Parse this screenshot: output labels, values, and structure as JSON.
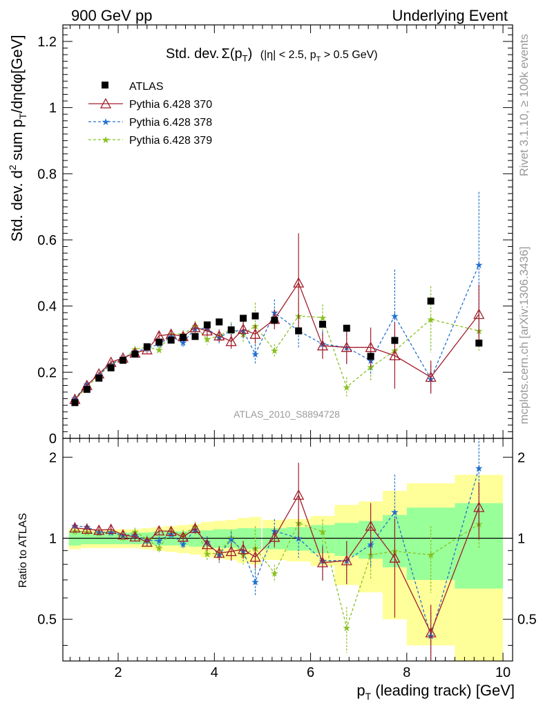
{
  "header": {
    "left": "900 GeV pp",
    "right": "Underlying Event"
  },
  "side_texts": {
    "rivet": "Rivet 3.1.10, ≥ 100k events",
    "mcplots": "mcplots.cern.ch [arXiv:1306.3436]"
  },
  "plot_title": {
    "prefix": "Std. dev.",
    "sigma": "Σ(p",
    "sub_t": "T",
    "close": ")",
    "cuts_a": "(|η| < 2.5, p",
    "cuts_sub": "T",
    "cuts_b": " > 0.5 GeV)"
  },
  "watermark": "ATLAS_2010_S8894728",
  "axis_labels": {
    "y_main_a": "Std. dev. d",
    "y_main_sup": "2",
    "y_main_b": " sum p",
    "y_main_sub": "T",
    "y_main_c": "/dηdφ[GeV]",
    "y_ratio": "Ratio to ATLAS",
    "x_a": "p",
    "x_sub": "T",
    "x_b": " (leading track) [GeV]"
  },
  "legend": {
    "atlas": "ATLAS",
    "s370": "Pythia 6.428 370",
    "s378": "Pythia 6.428 378",
    "s379": "Pythia 6.428 379"
  },
  "chart_data": {
    "type": "scatter",
    "xlim": [
      0.85,
      10.2
    ],
    "ylim_main": [
      0,
      1.25
    ],
    "ylim_ratio": [
      0.35,
      2.35
    ],
    "xticks": [
      2,
      4,
      6,
      8,
      10
    ],
    "yticks_main": [
      0,
      0.2,
      0.4,
      0.6,
      0.8,
      1,
      1.2
    ],
    "yticks_ratio": [
      0.5,
      1,
      2
    ],
    "ratio_log_scale": true,
    "x": [
      1.1,
      1.35,
      1.6,
      1.85,
      2.1,
      2.35,
      2.6,
      2.85,
      3.1,
      3.35,
      3.6,
      3.85,
      4.1,
      4.35,
      4.6,
      4.85,
      5.25,
      5.75,
      6.25,
      6.75,
      7.25,
      7.75,
      8.5,
      9.5
    ],
    "x_half_width": [
      0.125,
      0.125,
      0.125,
      0.125,
      0.125,
      0.125,
      0.125,
      0.125,
      0.125,
      0.125,
      0.125,
      0.125,
      0.125,
      0.125,
      0.125,
      0.125,
      0.25,
      0.25,
      0.25,
      0.25,
      0.25,
      0.25,
      0.5,
      0.5
    ],
    "atlas": [
      0.108,
      0.148,
      0.182,
      0.213,
      0.236,
      0.255,
      0.277,
      0.291,
      0.297,
      0.305,
      0.308,
      0.343,
      0.352,
      0.328,
      0.363,
      0.37,
      0.357,
      0.325,
      0.345,
      0.333,
      0.248,
      0.296,
      0.415,
      0.288
    ],
    "band_green": [
      0.06,
      0.05,
      0.05,
      0.05,
      0.05,
      0.05,
      0.05,
      0.06,
      0.06,
      0.06,
      0.07,
      0.07,
      0.08,
      0.08,
      0.09,
      0.09,
      0.09,
      0.1,
      0.12,
      0.14,
      0.16,
      0.22,
      0.3,
      0.35
    ],
    "band_yellow": [
      0.09,
      0.08,
      0.08,
      0.08,
      0.08,
      0.08,
      0.09,
      0.1,
      0.11,
      0.12,
      0.13,
      0.15,
      0.16,
      0.17,
      0.19,
      0.2,
      0.17,
      0.18,
      0.21,
      0.33,
      0.37,
      0.5,
      0.6,
      0.72
    ],
    "series": [
      {
        "name": "Pythia 6.428 370",
        "color": "#a01c2a",
        "marker": "open-triangle",
        "line": "solid",
        "values": [
          0.118,
          0.16,
          0.195,
          0.23,
          0.243,
          0.258,
          0.268,
          0.31,
          0.315,
          0.308,
          0.335,
          0.325,
          0.31,
          0.293,
          0.33,
          0.315,
          0.36,
          0.47,
          0.28,
          0.275,
          0.275,
          0.25,
          0.185,
          0.375
        ],
        "err": [
          0.004,
          0.005,
          0.006,
          0.007,
          0.008,
          0.009,
          0.01,
          0.011,
          0.012,
          0.013,
          0.015,
          0.017,
          0.019,
          0.022,
          0.025,
          0.028,
          0.03,
          0.15,
          0.04,
          0.05,
          0.06,
          0.1,
          0.05,
          0.09
        ]
      },
      {
        "name": "Pythia 6.428 378",
        "color": "#2070d0",
        "marker": "star",
        "line": "dashed",
        "values": [
          0.12,
          0.163,
          0.192,
          0.224,
          0.242,
          0.262,
          0.272,
          0.285,
          0.308,
          0.29,
          0.332,
          0.332,
          0.305,
          0.325,
          0.325,
          0.255,
          0.38,
          0.325,
          0.285,
          0.275,
          0.235,
          0.37,
          0.18,
          0.525
        ],
        "err": [
          0.004,
          0.005,
          0.006,
          0.007,
          0.008,
          0.009,
          0.01,
          0.011,
          0.012,
          0.013,
          0.015,
          0.017,
          0.02,
          0.022,
          0.025,
          0.03,
          0.04,
          0.05,
          0.04,
          0.05,
          0.04,
          0.14,
          0.04,
          0.22
        ]
      },
      {
        "name": "Pythia 6.428 379",
        "color": "#88c020",
        "marker": "star",
        "line": "dashed",
        "values": [
          0.115,
          0.156,
          0.19,
          0.225,
          0.238,
          0.27,
          0.275,
          0.268,
          0.315,
          0.315,
          0.34,
          0.3,
          0.31,
          0.33,
          0.315,
          0.34,
          0.265,
          0.37,
          0.365,
          0.155,
          0.215,
          0.265,
          0.36,
          0.325
        ],
        "err": [
          0.004,
          0.005,
          0.006,
          0.007,
          0.008,
          0.009,
          0.01,
          0.011,
          0.012,
          0.013,
          0.015,
          0.017,
          0.02,
          0.022,
          0.025,
          0.07,
          0.02,
          0.05,
          0.04,
          0.03,
          0.04,
          0.06,
          0.1,
          0.06
        ]
      }
    ]
  }
}
